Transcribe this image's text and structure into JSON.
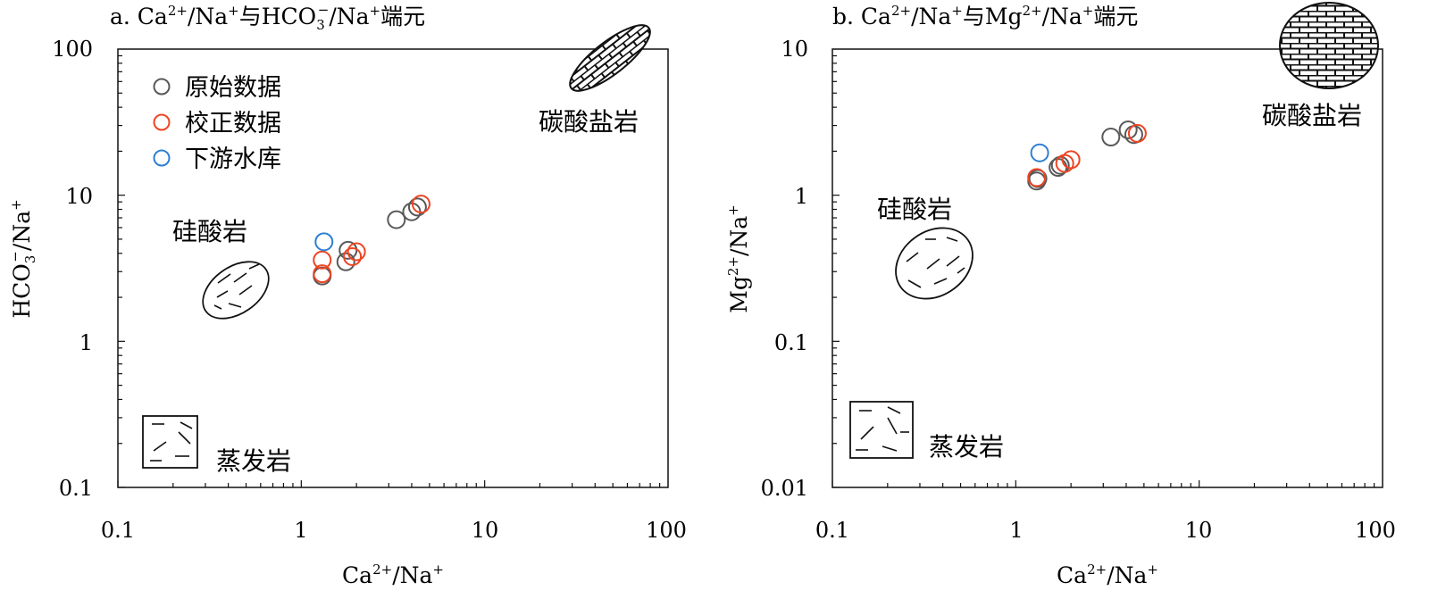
{
  "chart_data": [
    {
      "panel": "a",
      "type": "scatter",
      "title": "a. Ca²⁺/Na⁺与HCO₃⁻/Na⁺端元",
      "xlabel": "Ca²⁺/Na⁺",
      "ylabel": "HCO₃⁻/Na⁺",
      "xscale": "log",
      "yscale": "log",
      "xlim": [
        0.1,
        100
      ],
      "ylim": [
        0.1,
        100
      ],
      "xticks": [
        "0.1",
        "1",
        "10",
        "100"
      ],
      "yticks": [
        "0.1",
        "1",
        "10",
        "100"
      ],
      "legend_placement": "top-left",
      "series": [
        {
          "name": "原始数据",
          "color": "#595959",
          "points": [
            [
              1.3,
              2.8
            ],
            [
              1.75,
              3.5
            ],
            [
              1.8,
              4.2
            ],
            [
              3.3,
              6.8
            ],
            [
              4.0,
              7.7
            ],
            [
              4.3,
              8.3
            ]
          ]
        },
        {
          "name": "校正数据",
          "color": "#ee4422",
          "points": [
            [
              1.3,
              2.9
            ],
            [
              1.3,
              3.6
            ],
            [
              1.9,
              3.8
            ],
            [
              2.0,
              4.1
            ],
            [
              4.5,
              8.7
            ]
          ]
        },
        {
          "name": "下游水库",
          "color": "#2f7fd3",
          "points": [
            [
              1.33,
              4.8
            ]
          ]
        }
      ],
      "regions": [
        {
          "label": "碳酸盐岩",
          "pattern": "brick",
          "center": [
            50,
            40
          ]
        },
        {
          "label": "硅酸岩",
          "pattern": "dashes",
          "center": [
            0.55,
            2.2
          ]
        },
        {
          "label": "蒸发岩",
          "pattern": "dashes-box",
          "center": [
            0.25,
            0.25
          ]
        }
      ]
    },
    {
      "panel": "b",
      "type": "scatter",
      "title": "b. Ca²⁺/Na⁺与Mg²⁺/Na⁺端元",
      "xlabel": "Ca²⁺/Na⁺",
      "ylabel": "Mg²⁺/Na⁺",
      "xscale": "log",
      "yscale": "log",
      "xlim": [
        0.1,
        100
      ],
      "ylim": [
        0.01,
        10
      ],
      "xticks": [
        "0.1",
        "1",
        "10",
        "100"
      ],
      "yticks": [
        "0.01",
        "0.1",
        "1",
        "10"
      ],
      "series": [
        {
          "name": "原始数据",
          "color": "#595959",
          "points": [
            [
              1.3,
              1.25
            ],
            [
              1.32,
              1.3
            ],
            [
              1.7,
              1.55
            ],
            [
              1.75,
              1.6
            ],
            [
              3.3,
              2.5
            ],
            [
              4.1,
              2.8
            ],
            [
              4.4,
              2.6
            ]
          ]
        },
        {
          "name": "校正数据",
          "color": "#ee4422",
          "points": [
            [
              1.3,
              1.32
            ],
            [
              1.85,
              1.65
            ],
            [
              2.0,
              1.75
            ],
            [
              4.6,
              2.65
            ]
          ]
        },
        {
          "name": "下游水库",
          "color": "#2f7fd3",
          "points": [
            [
              1.35,
              1.95
            ]
          ]
        }
      ],
      "regions": [
        {
          "label": "碳酸盐岩",
          "pattern": "brick",
          "center": [
            60,
            10
          ]
        },
        {
          "label": "硅酸岩",
          "pattern": "dashes",
          "center": [
            0.5,
            0.35
          ]
        },
        {
          "label": "蒸发岩",
          "pattern": "dashes-box",
          "center": [
            0.25,
            0.025
          ]
        }
      ]
    }
  ],
  "text": {
    "a_title_pre": "a. Ca",
    "a_title_mid1": "/Na",
    "a_title_mid2": "与HCO",
    "a_title_mid3": "/Na",
    "a_title_post": "端元",
    "b_title_pre": "b. Ca",
    "b_title_mid1": "/Na",
    "b_title_mid2": "与Mg",
    "b_title_mid3": "/Na",
    "b_title_post": "端元",
    "sup_2plus": "2+",
    "sup_plus": "+",
    "sup_minus": "−",
    "sub_3": "3",
    "xlab_ca": "Ca",
    "xlab_na": "/Na",
    "ylab_a_hco": "HCO",
    "ylab_a_na": "/Na",
    "ylab_b_mg": "Mg",
    "ylab_b_na": "/Na",
    "legend": [
      "原始数据",
      "校正数据",
      "下游水库"
    ],
    "region_carbonate": "碳酸盐岩",
    "region_silicate": "硅酸岩",
    "region_evaporite": "蒸发岩"
  }
}
